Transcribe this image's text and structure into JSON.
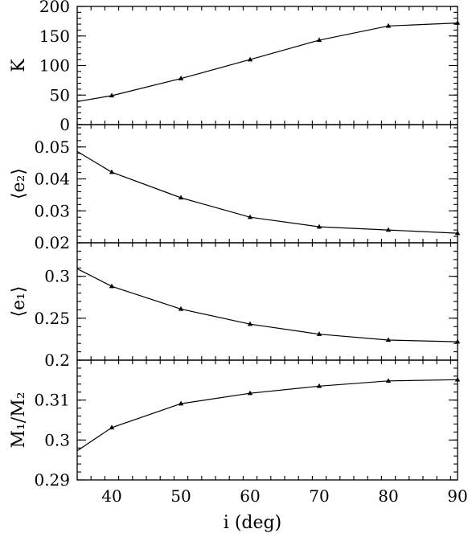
{
  "chart_data": {
    "type": "line",
    "xlabel": "i (deg)",
    "xlim": [
      35,
      90
    ],
    "x_ticks": [
      40,
      50,
      60,
      70,
      80,
      90
    ],
    "x": [
      35,
      40,
      50,
      60,
      70,
      80,
      90
    ],
    "panels": [
      {
        "id": "K",
        "ylabel": "K",
        "ylim": [
          0,
          200
        ],
        "y_ticks": [
          "0",
          "50",
          "100",
          "150",
          "200"
        ],
        "y_tick_values": [
          0,
          50,
          100,
          150,
          200
        ],
        "values": [
          39,
          49,
          78,
          110,
          143,
          167,
          172
        ]
      },
      {
        "id": "e2",
        "ylabel": "⟨e₂⟩",
        "ylim": [
          0.02,
          0.057
        ],
        "y_ticks": [
          "0.02",
          "0.03",
          "0.04",
          "0.05"
        ],
        "y_tick_values": [
          0.02,
          0.03,
          0.04,
          0.05
        ],
        "values": [
          0.0486,
          0.0421,
          0.0341,
          0.028,
          0.025,
          0.024,
          0.023
        ]
      },
      {
        "id": "e1",
        "ylabel": "⟨e₁⟩",
        "ylim": [
          0.2,
          0.34
        ],
        "y_ticks": [
          "0.2",
          "0.25",
          "0.3"
        ],
        "y_tick_values": [
          0.2,
          0.25,
          0.3
        ],
        "values": [
          0.309,
          0.288,
          0.261,
          0.243,
          0.231,
          0.224,
          0.222
        ]
      },
      {
        "id": "mass-ratio",
        "ylabel": "M₁/M₂",
        "ylim": [
          0.29,
          0.32
        ],
        "y_ticks": [
          "0.29",
          "0.3",
          "0.31"
        ],
        "y_tick_values": [
          0.29,
          0.3,
          0.31
        ],
        "values": [
          0.2973,
          0.3031,
          0.3091,
          0.3117,
          0.3135,
          0.3148,
          0.3151
        ]
      }
    ]
  }
}
